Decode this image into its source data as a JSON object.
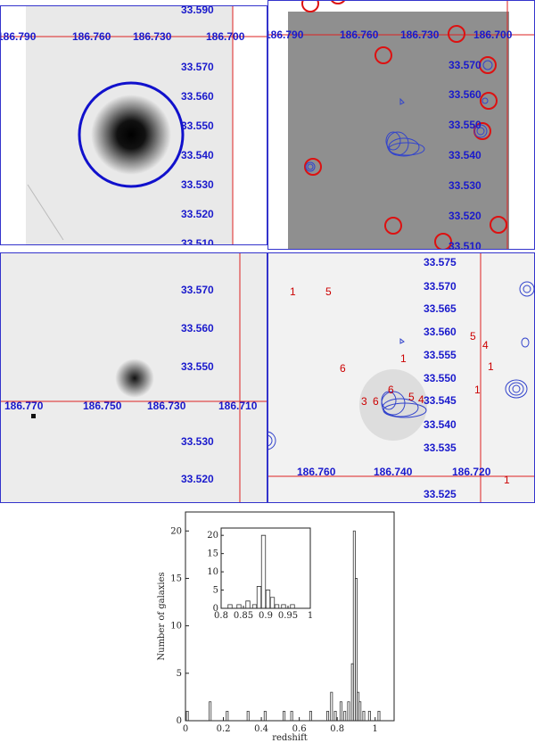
{
  "panels": {
    "p1": {
      "ra_ticks": [
        "186.790",
        "186.760",
        "186.730",
        "186.700"
      ],
      "dec_ticks": [
        "33.590",
        "33.570",
        "33.560",
        "33.550",
        "33.540",
        "33.530",
        "33.520",
        "33.510"
      ]
    },
    "p2": {
      "ra_ticks": [
        "186.790",
        "186.760",
        "186.730",
        "186.700"
      ],
      "dec_ticks": [
        "33.570",
        "33.560",
        "33.550",
        "33.540",
        "33.530",
        "33.520",
        "33.510"
      ]
    },
    "p3": {
      "ra_ticks": [
        "186.770",
        "186.750",
        "186.730",
        "186.710"
      ],
      "dec_ticks": [
        "33.570",
        "33.560",
        "33.550",
        "33.530",
        "33.520"
      ]
    },
    "p4": {
      "ra_ticks": [
        "186.760",
        "186.740",
        "186.720"
      ],
      "dec_ticks": [
        "33.575",
        "33.570",
        "33.565",
        "33.560",
        "33.555",
        "33.550",
        "33.545",
        "33.540",
        "33.535",
        "33.525"
      ],
      "markers": [
        "1",
        "5",
        "6",
        "1",
        "3",
        "6",
        "6",
        "5",
        "4",
        "5",
        "4",
        "1",
        "1",
        "1"
      ]
    }
  },
  "chart_data": {
    "type": "bar",
    "xlabel": "redshift",
    "ylabel": "Number of galaxies",
    "xlim": [
      0,
      1.1
    ],
    "ylim": [
      0,
      22
    ],
    "x_ticks": [
      "0",
      "0.2",
      "0.4",
      "0.6",
      "0.8",
      "1"
    ],
    "y_ticks": [
      "0",
      "5",
      "10",
      "15",
      "20"
    ],
    "bins": [
      {
        "x": 0.01,
        "n": 1
      },
      {
        "x": 0.13,
        "n": 2
      },
      {
        "x": 0.22,
        "n": 1
      },
      {
        "x": 0.33,
        "n": 1
      },
      {
        "x": 0.42,
        "n": 1
      },
      {
        "x": 0.52,
        "n": 1
      },
      {
        "x": 0.56,
        "n": 1
      },
      {
        "x": 0.66,
        "n": 1
      },
      {
        "x": 0.75,
        "n": 1
      },
      {
        "x": 0.77,
        "n": 3
      },
      {
        "x": 0.79,
        "n": 1
      },
      {
        "x": 0.82,
        "n": 2
      },
      {
        "x": 0.84,
        "n": 1
      },
      {
        "x": 0.86,
        "n": 2
      },
      {
        "x": 0.88,
        "n": 6
      },
      {
        "x": 0.89,
        "n": 20
      },
      {
        "x": 0.9,
        "n": 15
      },
      {
        "x": 0.91,
        "n": 3
      },
      {
        "x": 0.92,
        "n": 2
      },
      {
        "x": 0.94,
        "n": 1
      },
      {
        "x": 0.97,
        "n": 1
      },
      {
        "x": 1.02,
        "n": 1
      }
    ],
    "inset": {
      "xlim": [
        0.8,
        1.0
      ],
      "ylim": [
        0,
        22
      ],
      "x_ticks": [
        "0.8",
        "0.85",
        "0.9",
        "0.95",
        "1"
      ],
      "y_ticks": [
        "0",
        "5",
        "10",
        "15",
        "20"
      ],
      "bins": [
        {
          "x": 0.82,
          "n": 1
        },
        {
          "x": 0.84,
          "n": 1
        },
        {
          "x": 0.86,
          "n": 2
        },
        {
          "x": 0.875,
          "n": 1
        },
        {
          "x": 0.885,
          "n": 6
        },
        {
          "x": 0.895,
          "n": 20
        },
        {
          "x": 0.905,
          "n": 5
        },
        {
          "x": 0.915,
          "n": 3
        },
        {
          "x": 0.925,
          "n": 1
        },
        {
          "x": 0.94,
          "n": 1
        },
        {
          "x": 0.96,
          "n": 1
        }
      ]
    }
  },
  "colors": {
    "tick_blue": "#1a1acc",
    "ruler_red": "#dd2222",
    "circle_blue": "#1111cc",
    "circle_red": "#dd1111"
  }
}
